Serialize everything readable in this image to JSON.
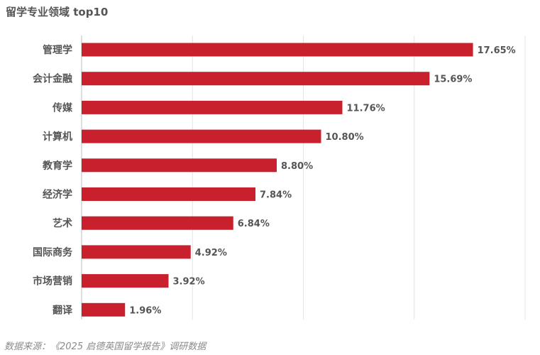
{
  "chart_data": {
    "type": "bar",
    "orientation": "horizontal",
    "title": "留学专业领域 top10",
    "categories": [
      "管理学",
      "会计金融",
      "传媒",
      "计算机",
      "教育学",
      "经济学",
      "艺术",
      "国际商务",
      "市场营销",
      "翻译"
    ],
    "values": [
      17.65,
      15.69,
      11.76,
      10.8,
      8.8,
      7.84,
      6.84,
      4.92,
      3.92,
      1.96
    ],
    "value_labels": [
      "17.65%",
      "15.69%",
      "11.76%",
      "10.80%",
      "8.80%",
      "7.84%",
      "6.84%",
      "4.92%",
      "3.92%",
      "1.96%"
    ],
    "xlim": [
      0,
      20
    ],
    "grid": true,
    "bar_color": "#c8202c"
  },
  "source_note": "数据来源：《2025 启德英国留学报告》调研数据"
}
